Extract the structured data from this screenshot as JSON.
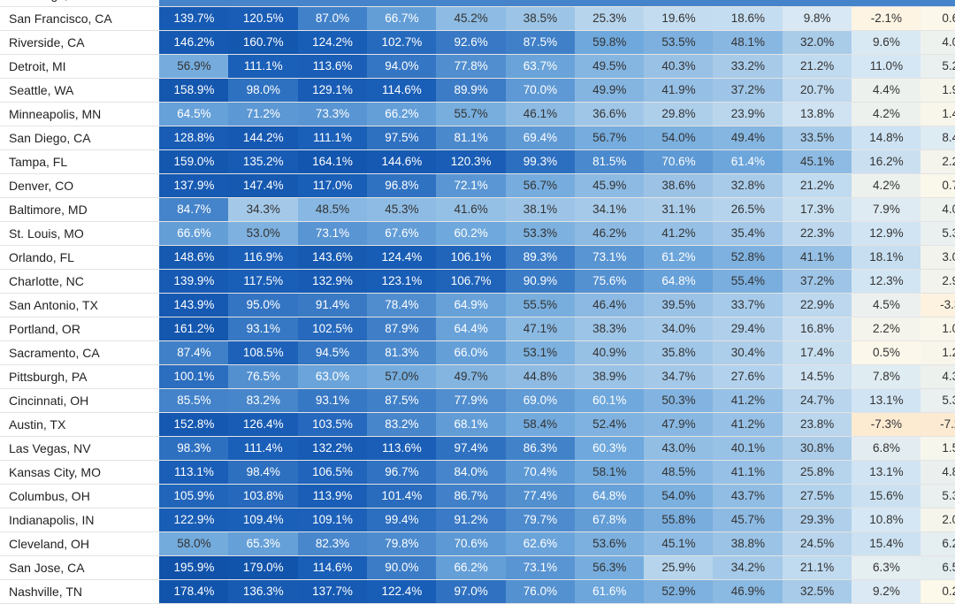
{
  "chart_data": {
    "type": "heatmap",
    "rows": [
      {
        "city": "Pittsburgh, PA",
        "values": [
          null,
          null,
          null,
          null,
          null,
          null,
          null,
          null,
          null,
          null,
          null,
          null
        ]
      },
      {
        "city": "San Francisco, CA",
        "values": [
          139.7,
          120.5,
          87.0,
          66.7,
          45.2,
          38.5,
          25.3,
          19.6,
          18.6,
          9.8,
          -2.1,
          0.6
        ]
      },
      {
        "city": "Riverside, CA",
        "values": [
          146.2,
          160.7,
          124.2,
          102.7,
          92.6,
          87.5,
          59.8,
          53.5,
          48.1,
          32.0,
          9.6,
          4.0
        ]
      },
      {
        "city": "Detroit, MI",
        "values": [
          56.9,
          111.1,
          113.6,
          94.0,
          77.8,
          63.7,
          49.5,
          40.3,
          33.2,
          21.2,
          11.0,
          5.2
        ]
      },
      {
        "city": "Seattle, WA",
        "values": [
          158.9,
          98.0,
          129.1,
          114.6,
          89.9,
          70.0,
          49.9,
          41.9,
          37.2,
          20.7,
          4.4,
          1.9
        ]
      },
      {
        "city": "Minneapolis, MN",
        "values": [
          64.5,
          71.2,
          73.3,
          66.2,
          55.7,
          46.1,
          36.6,
          29.8,
          23.9,
          13.8,
          4.2,
          1.4
        ]
      },
      {
        "city": "San Diego, CA",
        "values": [
          128.8,
          144.2,
          111.1,
          97.5,
          81.1,
          69.4,
          56.7,
          54.0,
          49.4,
          33.5,
          14.8,
          8.4
        ]
      },
      {
        "city": "Tampa, FL",
        "values": [
          159.0,
          135.2,
          164.1,
          144.6,
          120.3,
          99.3,
          81.5,
          70.6,
          61.4,
          45.1,
          16.2,
          2.2
        ]
      },
      {
        "city": "Denver, CO",
        "values": [
          137.9,
          147.4,
          117.0,
          96.8,
          72.1,
          56.7,
          45.9,
          38.6,
          32.8,
          21.2,
          4.2,
          0.7
        ]
      },
      {
        "city": "Baltimore, MD",
        "values": [
          84.7,
          34.3,
          48.5,
          45.3,
          41.6,
          38.1,
          34.1,
          31.1,
          26.5,
          17.3,
          7.9,
          4.0
        ]
      },
      {
        "city": "St. Louis, MO",
        "values": [
          66.6,
          53.0,
          73.1,
          67.6,
          60.2,
          53.3,
          46.2,
          41.2,
          35.4,
          22.3,
          12.9,
          5.3
        ]
      },
      {
        "city": "Orlando, FL",
        "values": [
          148.6,
          116.9,
          143.6,
          124.4,
          106.1,
          89.3,
          73.1,
          61.2,
          52.8,
          41.1,
          18.1,
          3.0
        ]
      },
      {
        "city": "Charlotte, NC",
        "values": [
          139.9,
          117.5,
          132.9,
          123.1,
          106.7,
          90.9,
          75.6,
          64.8,
          55.4,
          37.2,
          12.3,
          2.9
        ]
      },
      {
        "city": "San Antonio, TX",
        "values": [
          143.9,
          95.0,
          91.4,
          78.4,
          64.9,
          55.5,
          46.4,
          39.5,
          33.7,
          22.9,
          4.5,
          -3.3
        ]
      },
      {
        "city": "Portland, OR",
        "values": [
          161.2,
          93.1,
          102.5,
          87.9,
          64.4,
          47.1,
          38.3,
          34.0,
          29.4,
          16.8,
          2.2,
          1.0
        ]
      },
      {
        "city": "Sacramento, CA",
        "values": [
          87.4,
          108.5,
          94.5,
          81.3,
          66.0,
          53.1,
          40.9,
          35.8,
          30.4,
          17.4,
          0.5,
          1.2
        ]
      },
      {
        "city": "Pittsburgh, PA",
        "values": [
          100.1,
          76.5,
          63.0,
          57.0,
          49.7,
          44.8,
          38.9,
          34.7,
          27.6,
          14.5,
          7.8,
          4.3
        ]
      },
      {
        "city": "Cincinnati, OH",
        "values": [
          85.5,
          83.2,
          93.1,
          87.5,
          77.9,
          69.0,
          60.1,
          50.3,
          41.2,
          24.7,
          13.1,
          5.3
        ]
      },
      {
        "city": "Austin, TX",
        "values": [
          152.8,
          126.4,
          103.5,
          83.2,
          68.1,
          58.4,
          52.4,
          47.9,
          41.2,
          23.8,
          -7.3,
          -7.2
        ]
      },
      {
        "city": "Las Vegas, NV",
        "values": [
          98.3,
          111.4,
          132.2,
          113.6,
          97.4,
          86.3,
          60.3,
          43.0,
          40.1,
          30.8,
          6.8,
          1.5
        ]
      },
      {
        "city": "Kansas City, MO",
        "values": [
          113.1,
          98.4,
          106.5,
          96.7,
          84.0,
          70.4,
          58.1,
          48.5,
          41.1,
          25.8,
          13.1,
          4.8
        ]
      },
      {
        "city": "Columbus, OH",
        "values": [
          105.9,
          103.8,
          113.9,
          101.4,
          86.7,
          77.4,
          64.8,
          54.0,
          43.7,
          27.5,
          15.6,
          5.3
        ]
      },
      {
        "city": "Indianapolis, IN",
        "values": [
          122.9,
          109.4,
          109.1,
          99.4,
          91.2,
          79.7,
          67.8,
          55.8,
          45.7,
          29.3,
          10.8,
          2.0
        ]
      },
      {
        "city": "Cleveland, OH",
        "values": [
          58.0,
          65.3,
          82.3,
          79.8,
          70.6,
          62.6,
          53.6,
          45.1,
          38.8,
          24.5,
          15.4,
          6.2
        ]
      },
      {
        "city": "San Jose, CA",
        "values": [
          195.9,
          179.0,
          114.6,
          90.0,
          66.2,
          73.1,
          56.3,
          25.9,
          34.2,
          21.1,
          6.3,
          6.5
        ]
      },
      {
        "city": "Nashville, TN",
        "values": [
          178.4,
          136.3,
          137.7,
          122.4,
          97.0,
          76.0,
          61.6,
          52.9,
          46.9,
          32.5,
          9.2,
          0.2
        ]
      }
    ],
    "value_suffix": "%",
    "colors": {
      "negative": "#fce9cf",
      "zero": "#fdf8ea",
      "low": "#d7e8f4",
      "mid": "#6fa8dc",
      "high": "#1a5fb8",
      "text_dark": "#333333",
      "text_light": "#ffffff"
    }
  }
}
